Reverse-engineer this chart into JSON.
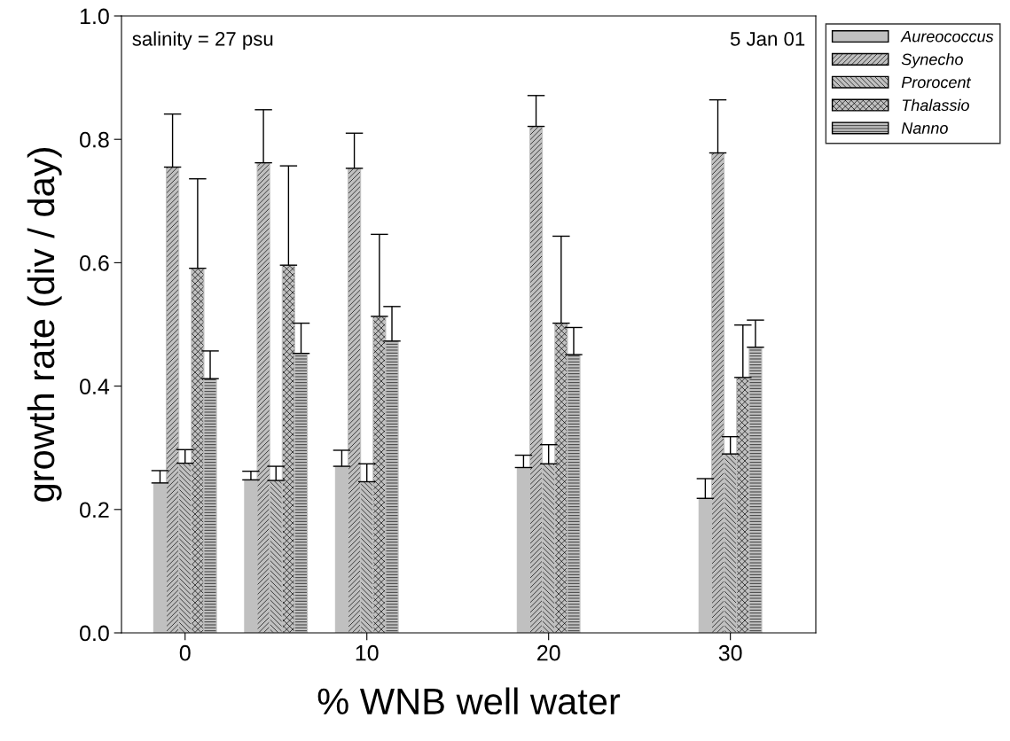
{
  "chart_data": {
    "type": "bar",
    "xlabel": "% WNB well water",
    "ylabel": "growth rate (div / day)",
    "x": [
      0,
      5,
      10,
      20,
      30
    ],
    "xlim": [
      -3.5,
      34.7
    ],
    "xticks": [
      0,
      10,
      20,
      30
    ],
    "ylim": [
      0,
      1.0
    ],
    "yticks": [
      {
        "value": 0,
        "label": "0.0"
      },
      0.2,
      0.4,
      0.6,
      0.8,
      {
        "value": 1.0,
        "label": "1.0"
      }
    ],
    "series": [
      {
        "name": "Aureococcus",
        "color": "#c0c0c0",
        "values": [
          0.243,
          0.248,
          0.27,
          0.268,
          0.218
        ],
        "errors": [
          [
            0.243,
            0.263
          ],
          [
            0.248,
            0.262
          ],
          [
            0.27,
            0.296
          ],
          [
            0.268,
            0.288
          ],
          [
            0.218,
            0.25
          ]
        ]
      },
      {
        "name": "Synecho",
        "color": "#c0c0c0",
        "values": [
          0.755,
          0.762,
          0.753,
          0.821,
          0.778
        ],
        "errors": [
          [
            0.755,
            0.841
          ],
          [
            0.762,
            0.848
          ],
          [
            0.753,
            0.81
          ],
          [
            0.821,
            0.871
          ],
          [
            0.778,
            0.864
          ]
        ]
      },
      {
        "name": "Prorocent",
        "color": "#c0c0c0",
        "values": [
          0.275,
          0.247,
          0.245,
          0.274,
          0.29
        ],
        "errors": [
          [
            0.275,
            0.297
          ],
          [
            0.247,
            0.27
          ],
          [
            0.245,
            0.274
          ],
          [
            0.274,
            0.305
          ],
          [
            0.29,
            0.318
          ]
        ]
      },
      {
        "name": "Thalassio",
        "color": "#c0c0c0",
        "values": [
          0.591,
          0.596,
          0.513,
          0.502,
          0.414
        ],
        "errors": [
          [
            0.591,
            0.736
          ],
          [
            0.596,
            0.757
          ],
          [
            0.513,
            0.646
          ],
          [
            0.502,
            0.643
          ],
          [
            0.414,
            0.499
          ]
        ]
      },
      {
        "name": "Nanno",
        "color": "#c0c0c0",
        "values": [
          0.412,
          0.453,
          0.473,
          0.451,
          0.463
        ],
        "errors": [
          [
            0.412,
            0.457
          ],
          [
            0.453,
            0.502
          ],
          [
            0.473,
            0.529
          ],
          [
            0.451,
            0.495
          ],
          [
            0.463,
            0.507
          ]
        ]
      }
    ],
    "annotations": [
      "salinity = 27 psu",
      "5 Jan 01"
    ],
    "legend": "top right",
    "grid": false
  }
}
